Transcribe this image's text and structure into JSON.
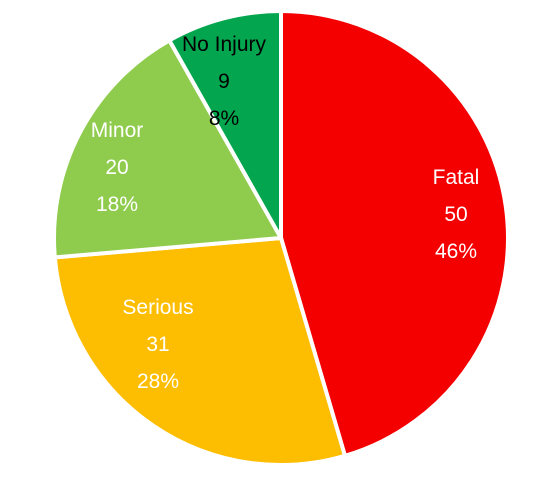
{
  "chart_data": {
    "type": "pie",
    "title": "",
    "start_angle_deg": 0,
    "direction": "clockwise",
    "legend": "none",
    "slices": [
      {
        "name": "Fatal",
        "value": 50,
        "percent": "46%",
        "color": "#f40000",
        "label_color": "#ffffff"
      },
      {
        "name": "Serious",
        "value": 31,
        "percent": "28%",
        "color": "#fdbd00",
        "label_color": "#ffffff"
      },
      {
        "name": "Minor",
        "value": 20,
        "percent": "18%",
        "color": "#8fcc4e",
        "label_color": "#ffffff"
      },
      {
        "name": "No Injury",
        "value": 9,
        "percent": "8%",
        "color": "#03a64e",
        "label_color": "#000000"
      }
    ]
  }
}
